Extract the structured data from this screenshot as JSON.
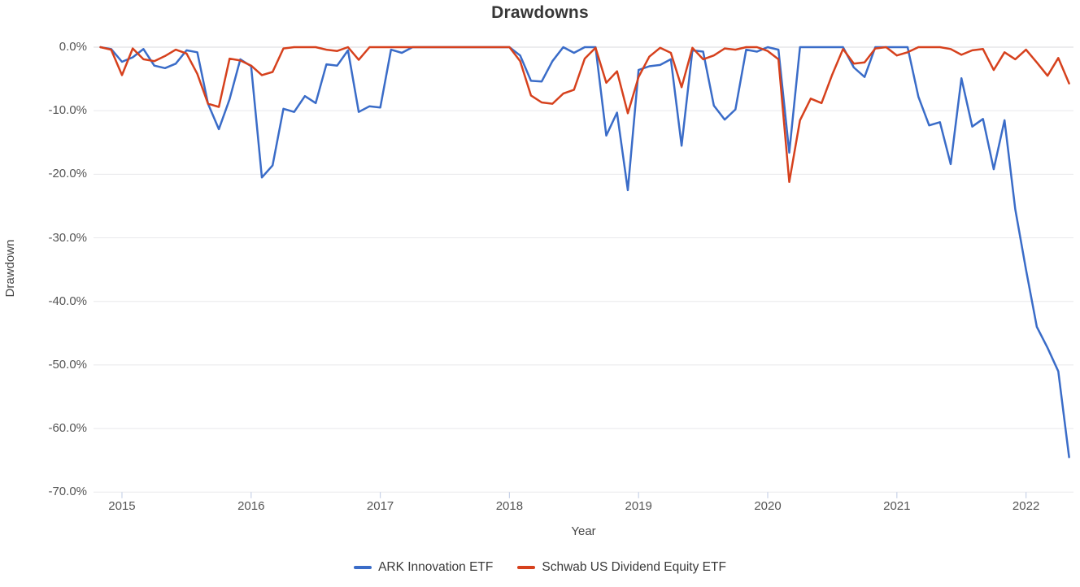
{
  "title": "Drawdowns",
  "x_axis": {
    "label": "Year",
    "ticks": [
      "2015",
      "2016",
      "2017",
      "2018",
      "2019",
      "2020",
      "2021",
      "2022"
    ]
  },
  "y_axis": {
    "label": "Drawdown",
    "ticks": [
      "0.0%",
      "-10.0%",
      "-20.0%",
      "-30.0%",
      "-40.0%",
      "-50.0%",
      "-60.0%",
      "-70.0%"
    ]
  },
  "colors": {
    "background": "#ffffff",
    "grid_line": "#e8e8eb",
    "zero_line": "#dadadd",
    "axis_tick": "#c9d3e8",
    "title_text": "#373737",
    "tick_text": "#555555"
  },
  "chart_data": {
    "type": "line",
    "title": "Drawdowns",
    "xlabel": "Year",
    "ylabel": "Drawdown",
    "y_unit": "%",
    "ylim": [
      -70,
      0
    ],
    "grid": true,
    "legend_position": "bottom-center",
    "x_frequency": "monthly",
    "x_start": "2014-11",
    "x_end": "2022-05",
    "x_year_ticks": [
      "2015",
      "2016",
      "2017",
      "2018",
      "2019",
      "2020",
      "2021",
      "2022"
    ],
    "series": [
      {
        "name": "ARK Innovation ETF",
        "color": "#3a6cc8",
        "values": [
          0,
          -0.3,
          -2.3,
          -1.6,
          -0.3,
          -2.9,
          -3.3,
          -2.6,
          -0.5,
          -0.8,
          -8.9,
          -12.9,
          -8.2,
          -1.9,
          -3.0,
          -20.5,
          -18.6,
          -9.7,
          -10.2,
          -7.7,
          -8.8,
          -2.7,
          -2.9,
          -0.5,
          -10.2,
          -9.3,
          -9.5,
          -0.4,
          -0.9,
          0,
          0,
          0,
          0,
          0,
          0,
          0,
          0,
          0,
          0,
          -1.3,
          -5.3,
          -5.4,
          -2.2,
          0,
          -0.9,
          0,
          0,
          -13.9,
          -10.3,
          -22.5,
          -3.6,
          -3.0,
          -2.8,
          -1.9,
          -15.5,
          -0.5,
          -0.7,
          -9.2,
          -11.4,
          -9.8,
          -0.4,
          -0.7,
          0,
          -0.4,
          -16.6,
          0,
          0,
          0,
          0,
          0,
          -3.2,
          -4.7,
          0,
          0,
          0,
          0,
          -7.8,
          -12.3,
          -11.8,
          -18.4,
          -4.9,
          -12.5,
          -11.3,
          -19.2,
          -11.5,
          -25.5,
          -35.0,
          -44.0,
          -47.3,
          -51.0,
          -64.5
        ]
      },
      {
        "name": "Schwab US Dividend Equity ETF",
        "color": "#d6411d",
        "values": [
          0,
          -0.4,
          -4.4,
          -0.2,
          -1.9,
          -2.2,
          -1.4,
          -0.4,
          -1.0,
          -4.2,
          -8.9,
          -9.4,
          -1.8,
          -2.1,
          -2.9,
          -4.4,
          -3.9,
          -0.2,
          0,
          0,
          0,
          -0.4,
          -0.6,
          0,
          -2.0,
          0,
          0,
          0,
          0,
          0,
          0,
          0,
          0,
          0,
          0,
          0,
          0,
          0,
          0,
          -2.2,
          -7.6,
          -8.7,
          -8.9,
          -7.3,
          -6.7,
          -1.8,
          -0.1,
          -5.6,
          -3.8,
          -10.4,
          -4.7,
          -1.5,
          -0.1,
          -0.9,
          -6.3,
          -0.1,
          -1.9,
          -1.3,
          -0.2,
          -0.4,
          0,
          0,
          -0.6,
          -1.9,
          -21.2,
          -11.5,
          -8.1,
          -8.8,
          -4.3,
          -0.3,
          -2.6,
          -2.4,
          -0.2,
          0,
          -1.3,
          -0.8,
          0,
          0,
          0,
          -0.3,
          -1.2,
          -0.5,
          -0.3,
          -3.6,
          -0.8,
          -1.9,
          -0.4,
          -2.4,
          -4.5,
          -1.7,
          -5.7
        ]
      }
    ]
  }
}
